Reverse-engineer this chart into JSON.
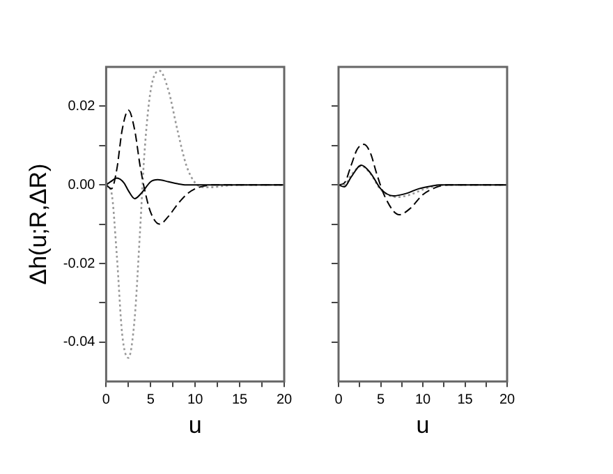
{
  "chart_data": [
    {
      "type": "line",
      "xlabel": "u",
      "ylabel": "Δh(u;R,ΔR)",
      "xlim": [
        0,
        20
      ],
      "xticks": [
        0,
        {
          "value": 2.5,
          "label": null
        },
        5,
        {
          "value": 7.5,
          "label": null
        },
        10,
        {
          "value": 12.5,
          "label": null
        },
        15,
        {
          "value": 17.5,
          "label": null
        },
        20
      ],
      "ylim": [
        -0.05,
        0.03
      ],
      "yticks": [
        {
          "value": -0.04,
          "label": "-0.04"
        },
        {
          "value": -0.03,
          "label": null
        },
        {
          "value": -0.02,
          "label": "-0.02"
        },
        {
          "value": -0.01,
          "label": null
        },
        {
          "value": 0,
          "label": "0.00"
        },
        {
          "value": 0.01,
          "label": null
        },
        {
          "value": 0.02,
          "label": "0.02"
        }
      ],
      "grid": false,
      "legend": false,
      "marker": "none",
      "series": [
        {
          "color": "#000000",
          "line_style": "solid",
          "x": [
            0,
            0.5,
            1.2,
            2,
            2.5,
            3.2,
            4,
            5,
            5.8,
            7,
            8,
            9,
            10,
            12,
            20
          ],
          "values": [
            0,
            0.0008,
            0.0017,
            0.0005,
            -0.0015,
            -0.0035,
            -0.002,
            0.0008,
            0.0013,
            0.0008,
            0.0003,
            0,
            0,
            0,
            0
          ]
        },
        {
          "color": "#000000",
          "line_style": "dashed",
          "x": [
            0,
            0.6,
            1.2,
            1.8,
            2.5,
            3.2,
            3.8,
            4.3,
            5,
            6,
            7,
            8,
            9,
            10,
            11,
            12,
            20
          ],
          "values": [
            0,
            -0.001,
            0.004,
            0.014,
            0.019,
            0.014,
            0.005,
            -0.001,
            -0.007,
            -0.01,
            -0.008,
            -0.005,
            -0.0025,
            -0.001,
            -0.0003,
            0,
            0
          ]
        },
        {
          "color": "#999999",
          "line_style": "dotted",
          "x": [
            0,
            0.6,
            1.2,
            1.8,
            2.5,
            3.2,
            3.8,
            4.3,
            5,
            6,
            7,
            8,
            9,
            10,
            11,
            12,
            13,
            15,
            20
          ],
          "values": [
            0,
            -0.002,
            -0.018,
            -0.038,
            -0.044,
            -0.034,
            -0.012,
            0.008,
            0.024,
            0.029,
            0.024,
            0.014,
            0.005,
            0.0005,
            -0.0006,
            -0.0006,
            -0.0003,
            0,
            0
          ]
        }
      ]
    },
    {
      "type": "line",
      "xlabel": "u",
      "xlim": [
        0,
        20
      ],
      "xticks": [
        0,
        {
          "value": 2.5,
          "label": null
        },
        5,
        {
          "value": 7.5,
          "label": null
        },
        10,
        {
          "value": 12.5,
          "label": null
        },
        15,
        {
          "value": 17.5,
          "label": null
        },
        20
      ],
      "ylim": [
        -0.05,
        0.03
      ],
      "yticks": [
        {
          "value": -0.04,
          "label": null
        },
        {
          "value": -0.03,
          "label": null
        },
        {
          "value": -0.02,
          "label": null
        },
        {
          "value": -0.01,
          "label": null
        },
        {
          "value": 0,
          "label": null
        },
        {
          "value": 0.01,
          "label": null
        },
        {
          "value": 0.02,
          "label": null
        }
      ],
      "tick_labels": "x",
      "grid": false,
      "legend": false,
      "marker": "none",
      "series": [
        {
          "color": "#000000",
          "line_style": "solid",
          "x": [
            0,
            0.7,
            1.5,
            2.7,
            3.8,
            5,
            6.5,
            8,
            9.5,
            11,
            12,
            20
          ],
          "values": [
            0,
            -0.0005,
            0.002,
            0.005,
            0.003,
            -0.001,
            -0.0028,
            -0.0022,
            -0.001,
            -0.0003,
            0,
            0
          ]
        },
        {
          "color": "#000000",
          "line_style": "dashed",
          "x": [
            0,
            0.7,
            1.5,
            2.2,
            3,
            3.8,
            4.5,
            5.5,
            7.2,
            8.5,
            10,
            11.5,
            13,
            20
          ],
          "values": [
            0,
            0.0005,
            0.005,
            0.009,
            0.0103,
            0.008,
            0.003,
            -0.003,
            -0.0076,
            -0.006,
            -0.0025,
            -0.0007,
            0,
            0
          ]
        },
        {
          "color": "#999999",
          "line_style": "dotted",
          "x": [
            0,
            0.7,
            1.5,
            2.7,
            3.8,
            5,
            7,
            8.5,
            10,
            11.5,
            13,
            20
          ],
          "values": [
            0,
            0,
            0.0025,
            0.0048,
            0.0028,
            -0.0012,
            -0.0031,
            -0.0025,
            -0.0012,
            -0.0003,
            0,
            0
          ]
        }
      ]
    }
  ]
}
